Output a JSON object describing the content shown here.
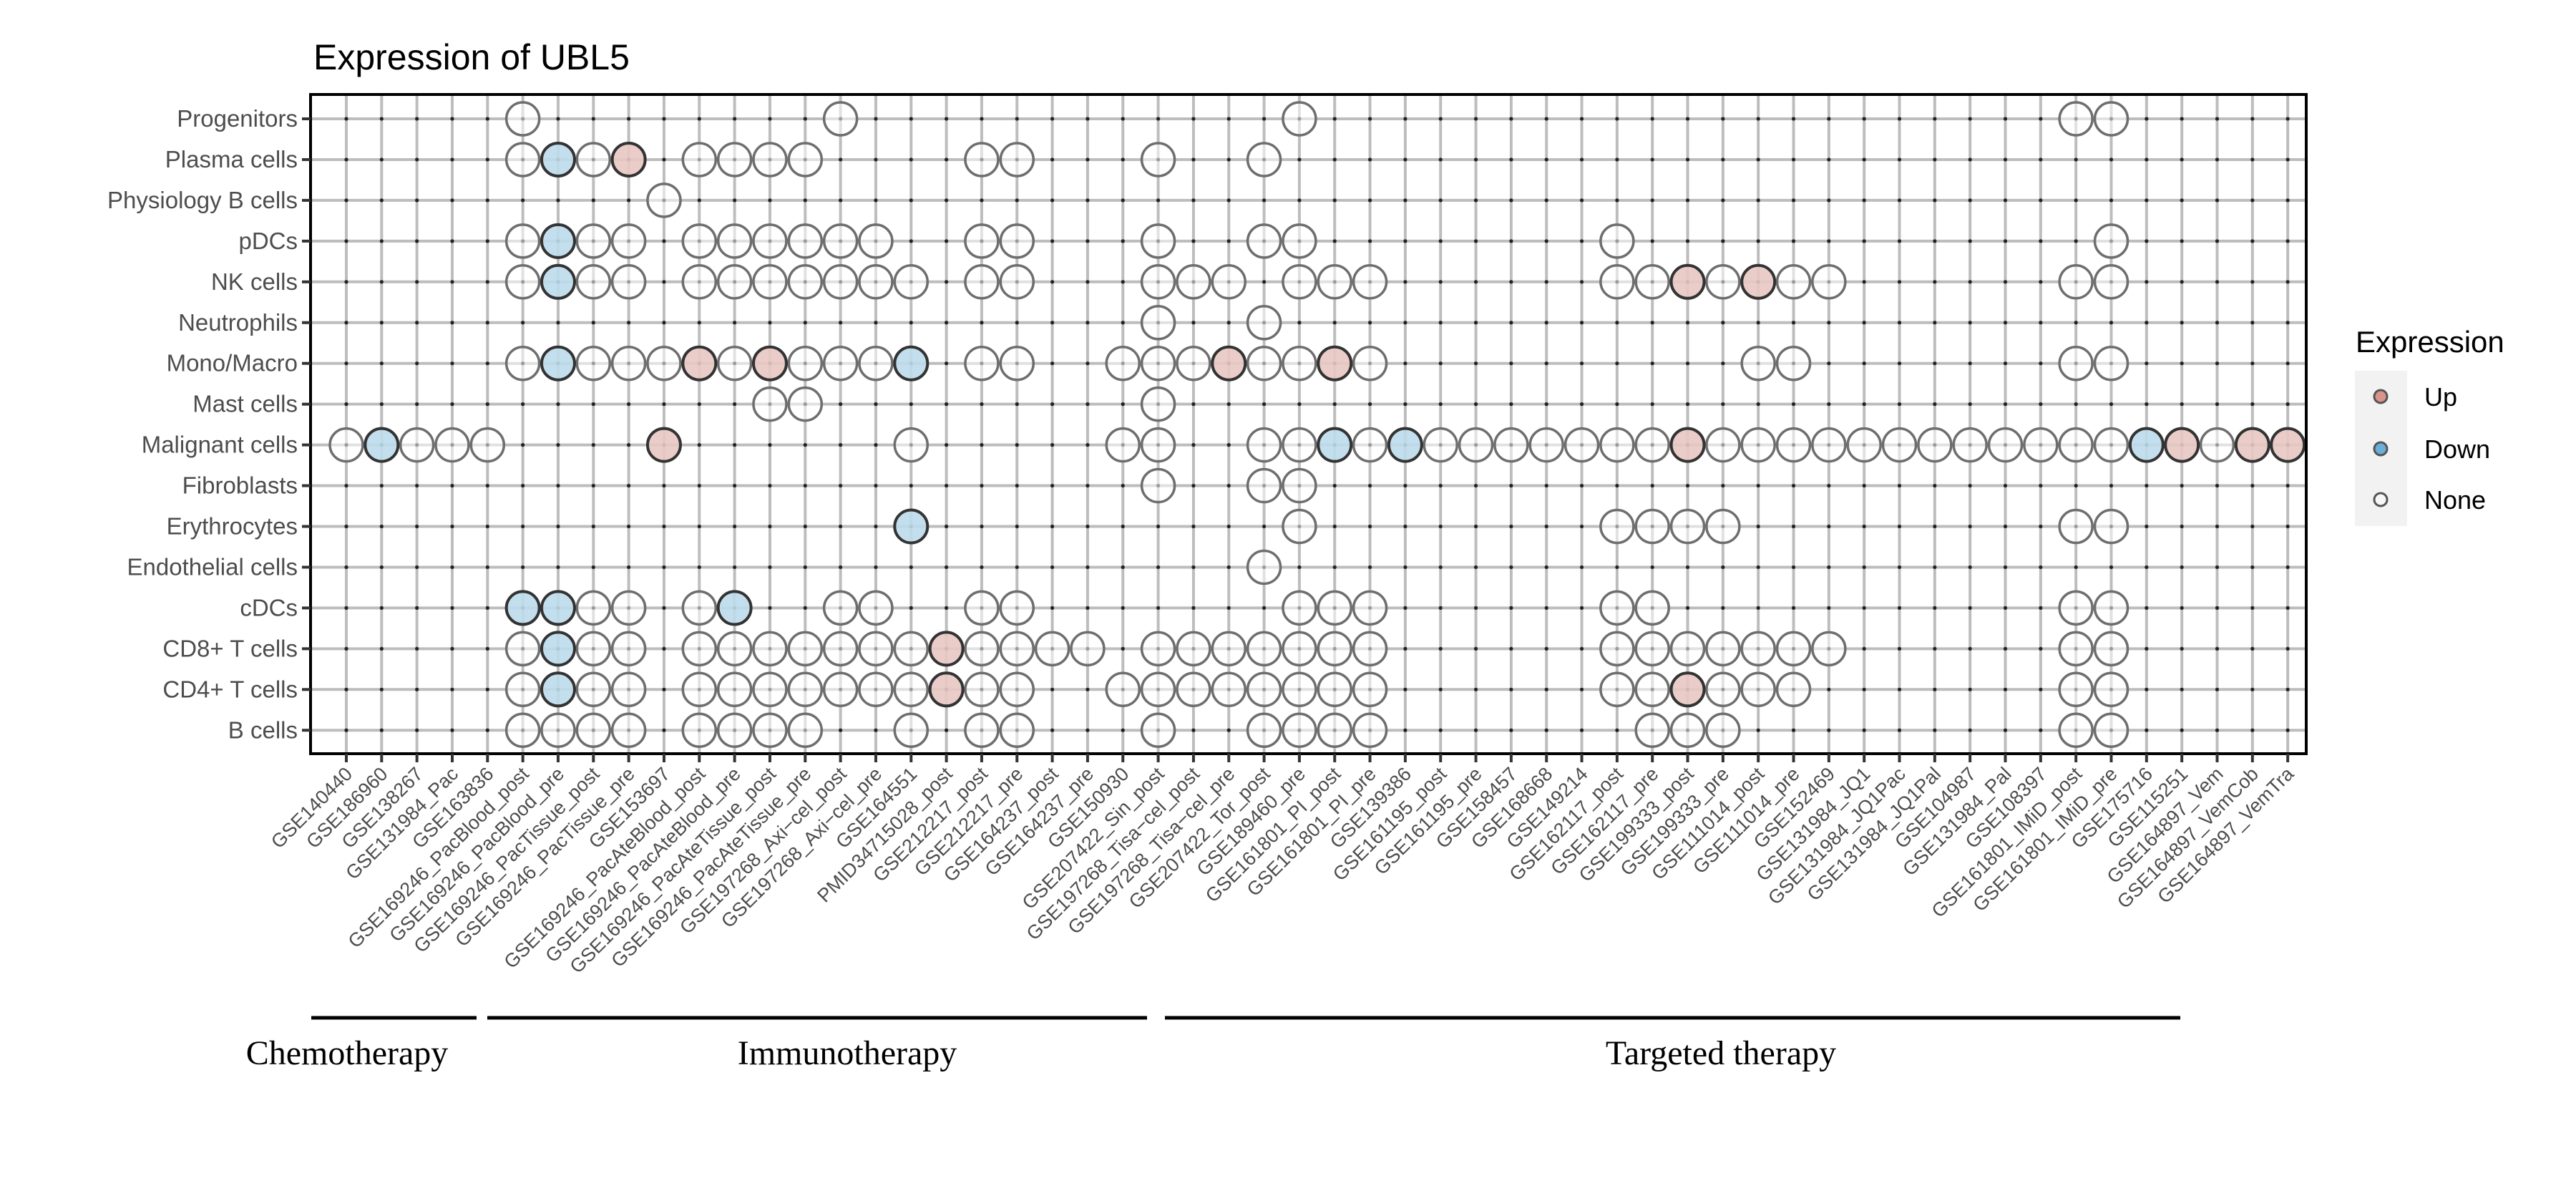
{
  "chart_data": {
    "type": "scatter",
    "subtype": "dot-matrix",
    "title": "Expression of UBL5",
    "xlabel": "",
    "ylabel": "",
    "grid": true,
    "legend": {
      "title": "Expression",
      "placement": "right",
      "entries": [
        {
          "key": "up",
          "label": "Up",
          "color": "#d9958a"
        },
        {
          "key": "down",
          "label": "Down",
          "color": "#6baed6"
        },
        {
          "key": "none",
          "label": "None",
          "color": "#f7f7f7"
        }
      ]
    },
    "cell_colors": {
      "up": "#e8c8c3",
      "down": "#bcdbec",
      "none": "#ffffff"
    },
    "columns": [
      "GSE140440",
      "GSE186960",
      "GSE138267",
      "GSE131984_Pac",
      "GSE163836",
      "GSE169246_PacBlood_post",
      "GSE169246_PacBlood_pre",
      "GSE169246_PacTissue_post",
      "GSE169246_PacTissue_pre",
      "GSE153697",
      "GSE169246_PacAteBlood_post",
      "GSE169246_PacAteBlood_pre",
      "GSE169246_PacAteTissue_post",
      "GSE169246_PacAteTissue_pre",
      "GSE197268_Axi−cel_post",
      "GSE197268_Axi−cel_pre",
      "GSE164551",
      "PMID34715028_post",
      "GSE212217_post",
      "GSE212217_pre",
      "GSE164237_post",
      "GSE164237_pre",
      "GSE150930",
      "GSE207422_Sin_post",
      "GSE197268_Tisa−cel_post",
      "GSE197268_Tisa−cel_pre",
      "GSE207422_Tor_post",
      "GSE189460_pre",
      "GSE161801_PI_post",
      "GSE161801_PI_pre",
      "GSE139386",
      "GSE161195_post",
      "GSE161195_pre",
      "GSE158457",
      "GSE168668",
      "GSE149214",
      "GSE162117_post",
      "GSE162117_pre",
      "GSE199333_post",
      "GSE199333_pre",
      "GSE111014_post",
      "GSE111014_pre",
      "GSE152469",
      "GSE131984_JQ1",
      "GSE131984_JQ1Pac",
      "GSE131984_JQ1Pal",
      "GSE104987",
      "GSE131984_Pal",
      "GSE108397",
      "GSE161801_IMiD_post",
      "GSE161801_IMiD_pre",
      "GSE175716",
      "GSE115251",
      "GSE164897_Vem",
      "GSE164897_VemCob",
      "GSE164897_VemTra"
    ],
    "rows": [
      {
        "label": "Progenitors",
        "none": [
          6,
          15,
          28,
          50,
          51
        ],
        "up": [],
        "down": []
      },
      {
        "label": "Plasma cells",
        "none": [
          6,
          8,
          11,
          12,
          13,
          14,
          19,
          20,
          24,
          27
        ],
        "up": [
          9
        ],
        "down": [
          7
        ]
      },
      {
        "label": "Physiology B cells",
        "none": [
          10
        ],
        "up": [],
        "down": []
      },
      {
        "label": "pDCs",
        "none": [
          6,
          8,
          9,
          11,
          12,
          13,
          14,
          15,
          16,
          19,
          20,
          24,
          27,
          28,
          37,
          51
        ],
        "up": [],
        "down": [
          7
        ]
      },
      {
        "label": "NK cells",
        "none": [
          6,
          8,
          9,
          11,
          12,
          13,
          14,
          15,
          16,
          17,
          19,
          20,
          24,
          25,
          26,
          28,
          29,
          30,
          37,
          38,
          40,
          42,
          43,
          50,
          51
        ],
        "up": [
          39,
          41
        ],
        "down": [
          7
        ]
      },
      {
        "label": "Neutrophils",
        "none": [
          24,
          27
        ],
        "up": [],
        "down": []
      },
      {
        "label": "Mono/Macro",
        "none": [
          6,
          8,
          9,
          10,
          12,
          14,
          15,
          16,
          19,
          20,
          23,
          24,
          25,
          27,
          28,
          30,
          41,
          42,
          50,
          51
        ],
        "up": [
          11,
          13,
          26,
          29
        ],
        "down": [
          7,
          17
        ]
      },
      {
        "label": "Mast cells",
        "none": [
          13,
          14,
          24
        ],
        "up": [],
        "down": []
      },
      {
        "label": "Malignant cells",
        "none": [
          1,
          3,
          4,
          5,
          17,
          23,
          24,
          27,
          28,
          30,
          32,
          33,
          34,
          35,
          36,
          37,
          38,
          40,
          41,
          42,
          43,
          44,
          45,
          46,
          47,
          48,
          49,
          50,
          51,
          54
        ],
        "up": [
          10,
          39,
          53,
          55,
          56
        ],
        "down": [
          2,
          29,
          31,
          52
        ]
      },
      {
        "label": "Fibroblasts",
        "none": [
          24,
          27,
          28
        ],
        "up": [],
        "down": []
      },
      {
        "label": "Erythrocytes",
        "none": [
          28,
          37,
          38,
          39,
          40,
          50,
          51
        ],
        "up": [],
        "down": [
          17
        ]
      },
      {
        "label": "Endothelial cells",
        "none": [
          27
        ],
        "up": [],
        "down": []
      },
      {
        "label": "cDCs",
        "none": [
          8,
          9,
          11,
          15,
          16,
          19,
          20,
          28,
          29,
          30,
          37,
          38,
          50,
          51
        ],
        "up": [],
        "down": [
          6,
          7,
          12
        ]
      },
      {
        "label": "CD8+ T cells",
        "none": [
          6,
          8,
          9,
          11,
          12,
          13,
          14,
          15,
          16,
          17,
          19,
          20,
          21,
          22,
          24,
          25,
          26,
          27,
          28,
          29,
          30,
          37,
          38,
          39,
          40,
          41,
          42,
          43,
          50,
          51
        ],
        "up": [
          18
        ],
        "down": [
          7
        ]
      },
      {
        "label": "CD4+ T cells",
        "none": [
          6,
          8,
          9,
          11,
          12,
          13,
          14,
          15,
          16,
          17,
          19,
          20,
          23,
          24,
          25,
          26,
          27,
          28,
          29,
          30,
          37,
          38,
          40,
          41,
          42,
          50,
          51
        ],
        "up": [
          18,
          39
        ],
        "down": [
          7
        ]
      },
      {
        "label": "B cells",
        "none": [
          6,
          7,
          8,
          9,
          11,
          12,
          13,
          14,
          17,
          19,
          20,
          24,
          27,
          28,
          29,
          30,
          38,
          39,
          40,
          50,
          51
        ],
        "up": [],
        "down": []
      }
    ],
    "groups": [
      {
        "label": "Chemotherapy"
      },
      {
        "label": "Immunotherapy"
      },
      {
        "label": "Targeted therapy"
      }
    ]
  }
}
